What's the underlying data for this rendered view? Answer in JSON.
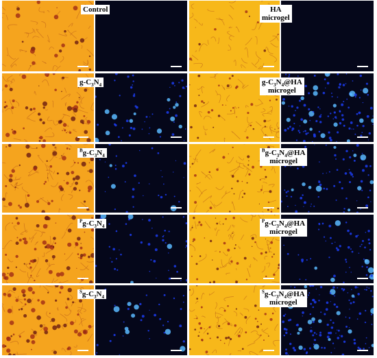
{
  "panels": [
    {
      "left": {
        "lines": [
          [
            {
              "text": "Control"
            }
          ]
        ]
      },
      "right": {
        "lines": [
          [
            {
              "text": "HA"
            }
          ],
          [
            {
              "text": "microgel"
            }
          ]
        ]
      }
    },
    {
      "left": {
        "lines": [
          [
            {
              "text": "g-C"
            },
            {
              "text": "3",
              "style": "sub"
            },
            {
              "text": "N"
            },
            {
              "text": "4",
              "style": "sub"
            }
          ]
        ]
      },
      "right": {
        "lines": [
          [
            {
              "text": "g-C"
            },
            {
              "text": "3",
              "style": "sub"
            },
            {
              "text": "N"
            },
            {
              "text": "4",
              "style": "sub"
            },
            {
              "text": "@HA"
            }
          ],
          [
            {
              "text": "microgel"
            }
          ]
        ]
      }
    },
    {
      "left": {
        "lines": [
          [
            {
              "text": "B",
              "style": "sup"
            },
            {
              "text": "g-C"
            },
            {
              "text": "3",
              "style": "sub"
            },
            {
              "text": "N"
            },
            {
              "text": "4",
              "style": "sub"
            }
          ]
        ]
      },
      "right": {
        "lines": [
          [
            {
              "text": "B",
              "style": "sup"
            },
            {
              "text": "g-C"
            },
            {
              "text": "3",
              "style": "sub"
            },
            {
              "text": "N"
            },
            {
              "text": "4",
              "style": "sub"
            },
            {
              "text": "@HA"
            }
          ],
          [
            {
              "text": "microgel"
            }
          ]
        ]
      }
    },
    {
      "left": {
        "lines": [
          [
            {
              "text": "P",
              "style": "sup"
            },
            {
              "text": "g-C"
            },
            {
              "text": "3",
              "style": "sub"
            },
            {
              "text": "N"
            },
            {
              "text": "4",
              "style": "sub"
            }
          ]
        ]
      },
      "right": {
        "lines": [
          [
            {
              "text": "P",
              "style": "sup"
            },
            {
              "text": "g-C"
            },
            {
              "text": "3",
              "style": "sub"
            },
            {
              "text": "N"
            },
            {
              "text": "4",
              "style": "sub"
            },
            {
              "text": "@HA"
            }
          ],
          [
            {
              "text": "microgel"
            }
          ]
        ]
      }
    },
    {
      "left": {
        "lines": [
          [
            {
              "text": "S",
              "style": "sup"
            },
            {
              "text": "g-C"
            },
            {
              "text": "3",
              "style": "sub"
            },
            {
              "text": "N"
            },
            {
              "text": "4",
              "style": "sub"
            }
          ]
        ]
      },
      "right": {
        "lines": [
          [
            {
              "text": "S",
              "style": "sup"
            },
            {
              "text": "g-C"
            },
            {
              "text": "3",
              "style": "sub"
            },
            {
              "text": "N"
            },
            {
              "text": "4",
              "style": "sub"
            },
            {
              "text": "@HA"
            }
          ],
          [
            {
              "text": "microgel"
            }
          ]
        ]
      }
    }
  ]
}
